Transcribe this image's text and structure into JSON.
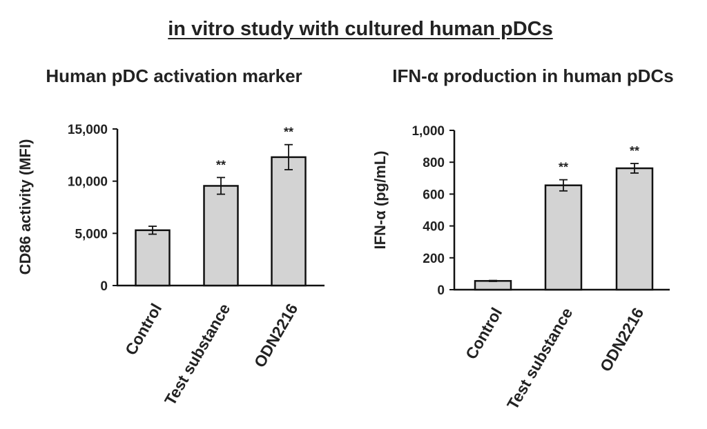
{
  "figure": {
    "title": "in vitro study with cultured human pDCs"
  },
  "chart_data": [
    {
      "type": "bar",
      "title": "Human pDC activation marker",
      "xlabel": "",
      "ylabel": "CD86 activity (MFI)",
      "categories": [
        "Control",
        "Test substance",
        "ODN2216"
      ],
      "values": [
        5300,
        9550,
        12300
      ],
      "error": [
        380,
        800,
        1200
      ],
      "significance": [
        "",
        "**",
        "**"
      ],
      "ylim": [
        0,
        15000
      ],
      "yticks": [
        0,
        5000,
        10000,
        15000
      ],
      "ytick_labels": [
        "0",
        "5,000",
        "10,000",
        "15,000"
      ],
      "grid": false,
      "bar_color": "#d3d3d3"
    },
    {
      "type": "bar",
      "title": "IFN-α production in human pDCs",
      "xlabel": "",
      "ylabel": "IFN-α (pg/mL)",
      "categories": [
        "Control",
        "Test substance",
        "ODN2216"
      ],
      "values": [
        55,
        655,
        762
      ],
      "error": [
        3,
        35,
        30
      ],
      "significance": [
        "",
        "**",
        "**"
      ],
      "ylim": [
        0,
        1000
      ],
      "yticks": [
        0,
        200,
        400,
        600,
        800,
        1000
      ],
      "ytick_labels": [
        "0",
        "200",
        "400",
        "600",
        "800",
        "1,000"
      ],
      "grid": false,
      "bar_color": "#d3d3d3"
    }
  ]
}
